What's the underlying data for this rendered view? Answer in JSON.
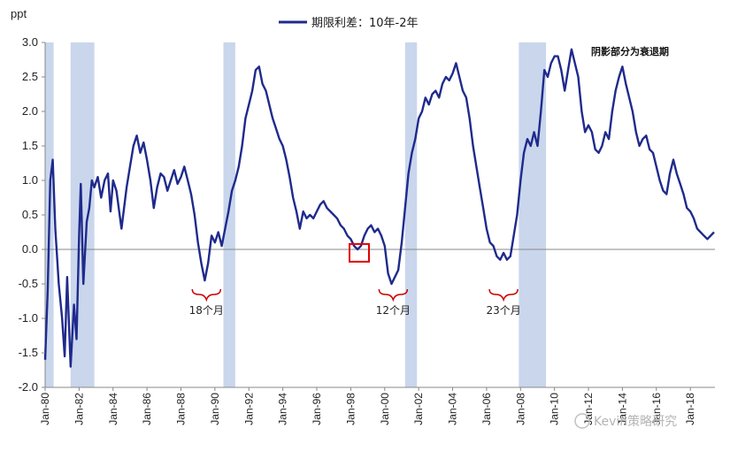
{
  "chart_data": {
    "type": "line",
    "ylabel": "ppt",
    "ylim": [
      -2.0,
      3.0
    ],
    "xlim": [
      "Jan-80",
      "Jan-19"
    ],
    "yticks": [
      3.0,
      2.5,
      2.0,
      1.5,
      1.0,
      0.5,
      0.0,
      -0.5,
      -1.0,
      -1.5,
      -2.0
    ],
    "ytick_labels": [
      "3.0",
      "2.5",
      "2.0",
      "1.5",
      "1.0",
      "0.5",
      "0.0",
      "-0.5",
      "-1.0",
      "-1.5",
      "-2.0"
    ],
    "xtick_labels": [
      "Jan-80",
      "Jan-82",
      "Jan-84",
      "Jan-86",
      "Jan-88",
      "Jan-90",
      "Jan-92",
      "Jan-94",
      "Jan-96",
      "Jan-98",
      "Jan-00",
      "Jan-02",
      "Jan-04",
      "Jan-06",
      "Jan-08",
      "Jan-10",
      "Jan-12",
      "Jan-14",
      "Jan-16",
      "Jan-18"
    ],
    "legend": {
      "label": "期限利差：10年-2年",
      "position": "top-center"
    },
    "shading_note": "阴影部分为衰退期",
    "colors": {
      "line": "#1f2a8c",
      "recession": "#c9d6ec",
      "axis": "#888888",
      "annotation": "#cc0000",
      "highlight_box": "#e00000"
    },
    "recessions": [
      {
        "start": 1980.0,
        "end": 1980.5
      },
      {
        "start": 1981.5,
        "end": 1982.9
      },
      {
        "start": 1990.5,
        "end": 1991.2
      },
      {
        "start": 2001.2,
        "end": 2001.9
      },
      {
        "start": 2007.9,
        "end": 2009.5
      }
    ],
    "annotations": [
      {
        "text": "18个月",
        "x": 1989.5
      },
      {
        "text": "12个月",
        "x": 2000.5
      },
      {
        "text": "23个月",
        "x": 2007.0
      }
    ],
    "highlight": {
      "x": 1998.5,
      "y": -0.05
    },
    "series": [
      {
        "values": [
          [
            1980.0,
            -1.6
          ],
          [
            1980.15,
            -0.6
          ],
          [
            1980.3,
            1.0
          ],
          [
            1980.45,
            1.3
          ],
          [
            1980.6,
            0.3
          ],
          [
            1980.8,
            -0.5
          ],
          [
            1981.0,
            -1.0
          ],
          [
            1981.15,
            -1.55
          ],
          [
            1981.3,
            -0.4
          ],
          [
            1981.5,
            -1.7
          ],
          [
            1981.7,
            -0.8
          ],
          [
            1981.85,
            -1.3
          ],
          [
            1982.0,
            0.2
          ],
          [
            1982.1,
            0.95
          ],
          [
            1982.25,
            -0.5
          ],
          [
            1982.45,
            0.4
          ],
          [
            1982.6,
            0.6
          ],
          [
            1982.75,
            1.0
          ],
          [
            1982.9,
            0.9
          ],
          [
            1983.1,
            1.05
          ],
          [
            1983.3,
            0.75
          ],
          [
            1983.5,
            1.0
          ],
          [
            1983.7,
            1.1
          ],
          [
            1983.85,
            0.55
          ],
          [
            1984.0,
            1.0
          ],
          [
            1984.2,
            0.85
          ],
          [
            1984.5,
            0.3
          ],
          [
            1984.8,
            0.9
          ],
          [
            1985.0,
            1.2
          ],
          [
            1985.2,
            1.5
          ],
          [
            1985.4,
            1.65
          ],
          [
            1985.6,
            1.4
          ],
          [
            1985.8,
            1.55
          ],
          [
            1986.0,
            1.3
          ],
          [
            1986.2,
            1.0
          ],
          [
            1986.4,
            0.6
          ],
          [
            1986.6,
            0.9
          ],
          [
            1986.8,
            1.1
          ],
          [
            1987.0,
            1.05
          ],
          [
            1987.2,
            0.85
          ],
          [
            1987.4,
            1.0
          ],
          [
            1987.6,
            1.15
          ],
          [
            1987.8,
            0.95
          ],
          [
            1988.0,
            1.05
          ],
          [
            1988.2,
            1.2
          ],
          [
            1988.4,
            1.0
          ],
          [
            1988.6,
            0.8
          ],
          [
            1988.8,
            0.5
          ],
          [
            1989.0,
            0.1
          ],
          [
            1989.2,
            -0.2
          ],
          [
            1989.4,
            -0.45
          ],
          [
            1989.6,
            -0.2
          ],
          [
            1989.8,
            0.2
          ],
          [
            1990.0,
            0.1
          ],
          [
            1990.2,
            0.25
          ],
          [
            1990.4,
            0.05
          ],
          [
            1990.6,
            0.3
          ],
          [
            1990.8,
            0.55
          ],
          [
            1991.0,
            0.85
          ],
          [
            1991.2,
            1.0
          ],
          [
            1991.4,
            1.2
          ],
          [
            1991.6,
            1.5
          ],
          [
            1991.8,
            1.9
          ],
          [
            1992.0,
            2.1
          ],
          [
            1992.2,
            2.3
          ],
          [
            1992.4,
            2.6
          ],
          [
            1992.6,
            2.65
          ],
          [
            1992.8,
            2.4
          ],
          [
            1993.0,
            2.3
          ],
          [
            1993.2,
            2.1
          ],
          [
            1993.4,
            1.9
          ],
          [
            1993.6,
            1.75
          ],
          [
            1993.8,
            1.6
          ],
          [
            1994.0,
            1.5
          ],
          [
            1994.2,
            1.3
          ],
          [
            1994.4,
            1.05
          ],
          [
            1994.6,
            0.75
          ],
          [
            1994.8,
            0.55
          ],
          [
            1995.0,
            0.3
          ],
          [
            1995.2,
            0.55
          ],
          [
            1995.4,
            0.45
          ],
          [
            1995.6,
            0.5
          ],
          [
            1995.8,
            0.45
          ],
          [
            1996.0,
            0.55
          ],
          [
            1996.2,
            0.65
          ],
          [
            1996.4,
            0.7
          ],
          [
            1996.6,
            0.6
          ],
          [
            1996.8,
            0.55
          ],
          [
            1997.0,
            0.5
          ],
          [
            1997.2,
            0.45
          ],
          [
            1997.4,
            0.35
          ],
          [
            1997.6,
            0.3
          ],
          [
            1997.8,
            0.2
          ],
          [
            1998.0,
            0.15
          ],
          [
            1998.2,
            0.05
          ],
          [
            1998.4,
            0.0
          ],
          [
            1998.6,
            0.05
          ],
          [
            1998.8,
            0.2
          ],
          [
            1999.0,
            0.3
          ],
          [
            1999.2,
            0.35
          ],
          [
            1999.4,
            0.25
          ],
          [
            1999.6,
            0.3
          ],
          [
            1999.8,
            0.2
          ],
          [
            2000.0,
            0.05
          ],
          [
            2000.2,
            -0.35
          ],
          [
            2000.4,
            -0.5
          ],
          [
            2000.6,
            -0.4
          ],
          [
            2000.8,
            -0.3
          ],
          [
            2001.0,
            0.1
          ],
          [
            2001.2,
            0.6
          ],
          [
            2001.4,
            1.1
          ],
          [
            2001.6,
            1.4
          ],
          [
            2001.8,
            1.6
          ],
          [
            2002.0,
            1.9
          ],
          [
            2002.2,
            2.0
          ],
          [
            2002.4,
            2.2
          ],
          [
            2002.6,
            2.1
          ],
          [
            2002.8,
            2.25
          ],
          [
            2003.0,
            2.3
          ],
          [
            2003.2,
            2.2
          ],
          [
            2003.4,
            2.4
          ],
          [
            2003.6,
            2.5
          ],
          [
            2003.8,
            2.45
          ],
          [
            2004.0,
            2.55
          ],
          [
            2004.2,
            2.7
          ],
          [
            2004.4,
            2.5
          ],
          [
            2004.6,
            2.3
          ],
          [
            2004.8,
            2.2
          ],
          [
            2005.0,
            1.9
          ],
          [
            2005.2,
            1.5
          ],
          [
            2005.4,
            1.2
          ],
          [
            2005.6,
            0.9
          ],
          [
            2005.8,
            0.6
          ],
          [
            2006.0,
            0.3
          ],
          [
            2006.2,
            0.1
          ],
          [
            2006.4,
            0.05
          ],
          [
            2006.6,
            -0.1
          ],
          [
            2006.8,
            -0.15
          ],
          [
            2007.0,
            -0.05
          ],
          [
            2007.2,
            -0.15
          ],
          [
            2007.4,
            -0.1
          ],
          [
            2007.6,
            0.2
          ],
          [
            2007.8,
            0.5
          ],
          [
            2008.0,
            1.0
          ],
          [
            2008.2,
            1.4
          ],
          [
            2008.4,
            1.6
          ],
          [
            2008.6,
            1.5
          ],
          [
            2008.8,
            1.7
          ],
          [
            2009.0,
            1.5
          ],
          [
            2009.2,
            2.0
          ],
          [
            2009.4,
            2.6
          ],
          [
            2009.6,
            2.5
          ],
          [
            2009.8,
            2.7
          ],
          [
            2010.0,
            2.8
          ],
          [
            2010.2,
            2.8
          ],
          [
            2010.4,
            2.6
          ],
          [
            2010.6,
            2.3
          ],
          [
            2010.8,
            2.6
          ],
          [
            2011.0,
            2.9
          ],
          [
            2011.2,
            2.7
          ],
          [
            2011.4,
            2.5
          ],
          [
            2011.6,
            2.0
          ],
          [
            2011.8,
            1.7
          ],
          [
            2012.0,
            1.8
          ],
          [
            2012.2,
            1.7
          ],
          [
            2012.4,
            1.45
          ],
          [
            2012.6,
            1.4
          ],
          [
            2012.8,
            1.5
          ],
          [
            2013.0,
            1.7
          ],
          [
            2013.2,
            1.6
          ],
          [
            2013.4,
            2.0
          ],
          [
            2013.6,
            2.3
          ],
          [
            2013.8,
            2.5
          ],
          [
            2014.0,
            2.65
          ],
          [
            2014.2,
            2.4
          ],
          [
            2014.4,
            2.2
          ],
          [
            2014.6,
            2.0
          ],
          [
            2014.8,
            1.7
          ],
          [
            2015.0,
            1.5
          ],
          [
            2015.2,
            1.6
          ],
          [
            2015.4,
            1.65
          ],
          [
            2015.6,
            1.45
          ],
          [
            2015.8,
            1.4
          ],
          [
            2016.0,
            1.2
          ],
          [
            2016.2,
            1.0
          ],
          [
            2016.4,
            0.85
          ],
          [
            2016.6,
            0.8
          ],
          [
            2016.8,
            1.1
          ],
          [
            2017.0,
            1.3
          ],
          [
            2017.2,
            1.1
          ],
          [
            2017.4,
            0.95
          ],
          [
            2017.6,
            0.8
          ],
          [
            2017.8,
            0.6
          ],
          [
            2018.0,
            0.55
          ],
          [
            2018.2,
            0.45
          ],
          [
            2018.4,
            0.3
          ],
          [
            2018.6,
            0.25
          ],
          [
            2018.8,
            0.2
          ],
          [
            2019.0,
            0.15
          ],
          [
            2019.2,
            0.2
          ],
          [
            2019.4,
            0.25
          ]
        ]
      }
    ]
  },
  "watermark": "Kevin策略研究"
}
